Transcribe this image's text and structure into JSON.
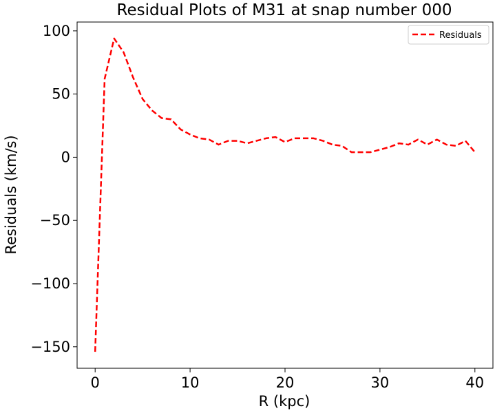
{
  "chart_data": {
    "type": "line",
    "title": "Residual Plots of M31 at snap number 000",
    "xlabel": "R (kpc)",
    "ylabel": "Residuals (km/s)",
    "xlim": [
      -1.9,
      41.9
    ],
    "ylim": [
      -167,
      107
    ],
    "xticks": [
      0,
      10,
      20,
      30,
      40
    ],
    "xtick_labels": [
      "0",
      "10",
      "20",
      "30",
      "40"
    ],
    "yticks": [
      -150,
      -100,
      -50,
      0,
      50,
      100
    ],
    "ytick_labels": [
      "−150",
      "−100",
      "−50",
      "0",
      "50",
      "100"
    ],
    "grid": false,
    "legend_position": "top-right",
    "series": [
      {
        "name": "Residuals",
        "color": "#ff0000",
        "line_style": "dashed",
        "x": [
          0,
          1,
          2,
          3,
          4,
          5,
          6,
          7,
          8,
          9,
          10,
          11,
          12,
          13,
          14,
          15,
          16,
          17,
          18,
          19,
          20,
          21,
          22,
          23,
          24,
          25,
          26,
          27,
          28,
          29,
          30,
          31,
          32,
          33,
          34,
          35,
          36,
          37,
          38,
          39,
          40
        ],
        "y": [
          -154,
          62,
          94,
          83,
          63,
          46,
          37,
          31,
          30,
          22,
          18,
          15,
          14,
          10,
          13,
          13,
          11,
          13,
          15,
          16,
          12,
          15,
          15,
          15,
          13,
          10,
          9,
          4,
          4,
          4,
          6,
          8,
          11,
          10,
          14,
          10,
          14,
          10,
          9,
          13,
          4
        ]
      }
    ]
  }
}
